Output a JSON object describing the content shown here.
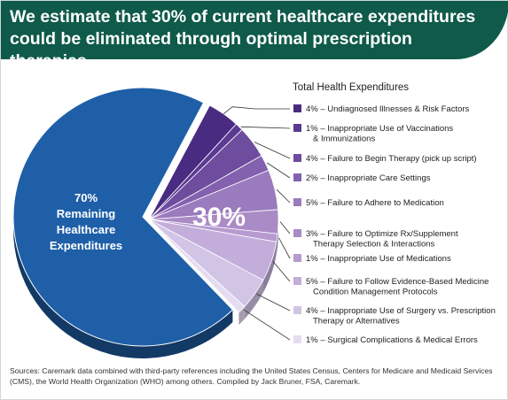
{
  "header": {
    "title_line1": "We estimate that 30% of current healthcare expenditures",
    "title_line2": "could be eliminated through optimal prescription therapies."
  },
  "footer": {
    "sources_line1": "Sources: Caremark data combined with third-party references including the United States Census, Centers for Medicare and Medicaid Services",
    "sources_line2": "(CMS), the World Health Organization (WHO) among others. Compiled by Jack Bruner, FSA, Caremark."
  },
  "chart_data": {
    "type": "pie",
    "title": "Total Health Expenditures",
    "big_slice": {
      "value": 70,
      "label_lines": [
        "70%",
        "Remaining",
        "Healthcare",
        "Expenditures"
      ],
      "color": "#1f5fa8"
    },
    "exploded_group_label": "30%",
    "slices": [
      {
        "value": 4,
        "label_lines": [
          "4% – Undiagnosed Illnesses & Risk Factors"
        ],
        "color": "#4a2b82"
      },
      {
        "value": 1,
        "label_lines": [
          "1% – Inappropriate Use of Vaccinations",
          "& Immunizations"
        ],
        "color": "#5a3a92"
      },
      {
        "value": 4,
        "label_lines": [
          "4% – Failure to Begin Therapy (pick up script)"
        ],
        "color": "#6e4c9e"
      },
      {
        "value": 2,
        "label_lines": [
          "2% – Inappropriate Care Settings"
        ],
        "color": "#8361ae"
      },
      {
        "value": 5,
        "label_lines": [
          "5% – Failure to Adhere to Medication"
        ],
        "color": "#9a7bbd"
      },
      {
        "value": 3,
        "label_lines": [
          "3% – Failure to Optimize Rx/Supplement",
          "Therapy Selection & Interactions"
        ],
        "color": "#aa8bc6"
      },
      {
        "value": 1,
        "label_lines": [
          "1% – Inappropriate Use of Medications"
        ],
        "color": "#b79bd0"
      },
      {
        "value": 5,
        "label_lines": [
          "5% – Failure to Follow Evidence-Based Medicine",
          "Condition Management Protocols"
        ],
        "color": "#c3addb"
      },
      {
        "value": 4,
        "label_lines": [
          "4% – Inappropriate Use of Surgery vs. Prescription",
          "Therapy or Alternatives"
        ],
        "color": "#d2c4e5"
      },
      {
        "value": 1,
        "label_lines": [
          "1% – Surgical Complications & Medical Errors"
        ],
        "color": "#e4dcf0"
      }
    ]
  }
}
